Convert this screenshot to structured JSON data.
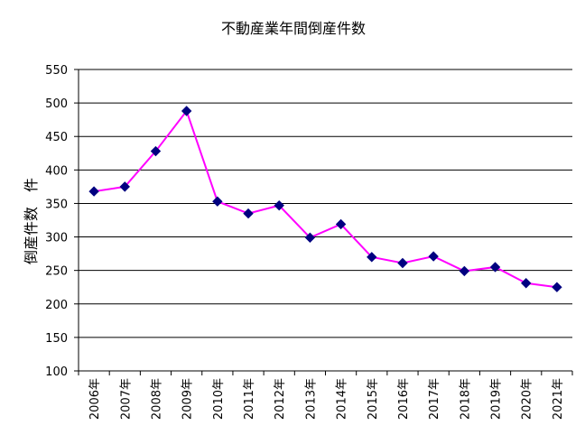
{
  "chart_data": {
    "type": "line",
    "title": "不動産業年間倒産件数",
    "ylabel": "倒産件数　件",
    "xlabel": "",
    "categories": [
      "2006年",
      "2007年",
      "2008年",
      "2009年",
      "2010年",
      "2011年",
      "2012年",
      "2013年",
      "2014年",
      "2015年",
      "2016年",
      "2017年",
      "2018年",
      "2019年",
      "2020年",
      "2021年"
    ],
    "values": [
      368,
      375,
      428,
      488,
      353,
      335,
      347,
      299,
      319,
      270,
      261,
      271,
      249,
      255,
      231,
      225
    ],
    "ylim": [
      100,
      550
    ],
    "yticks": [
      100,
      150,
      200,
      250,
      300,
      350,
      400,
      450,
      500,
      550
    ],
    "grid": true,
    "line_color": "#ff00ff",
    "marker_color": "#000080"
  }
}
